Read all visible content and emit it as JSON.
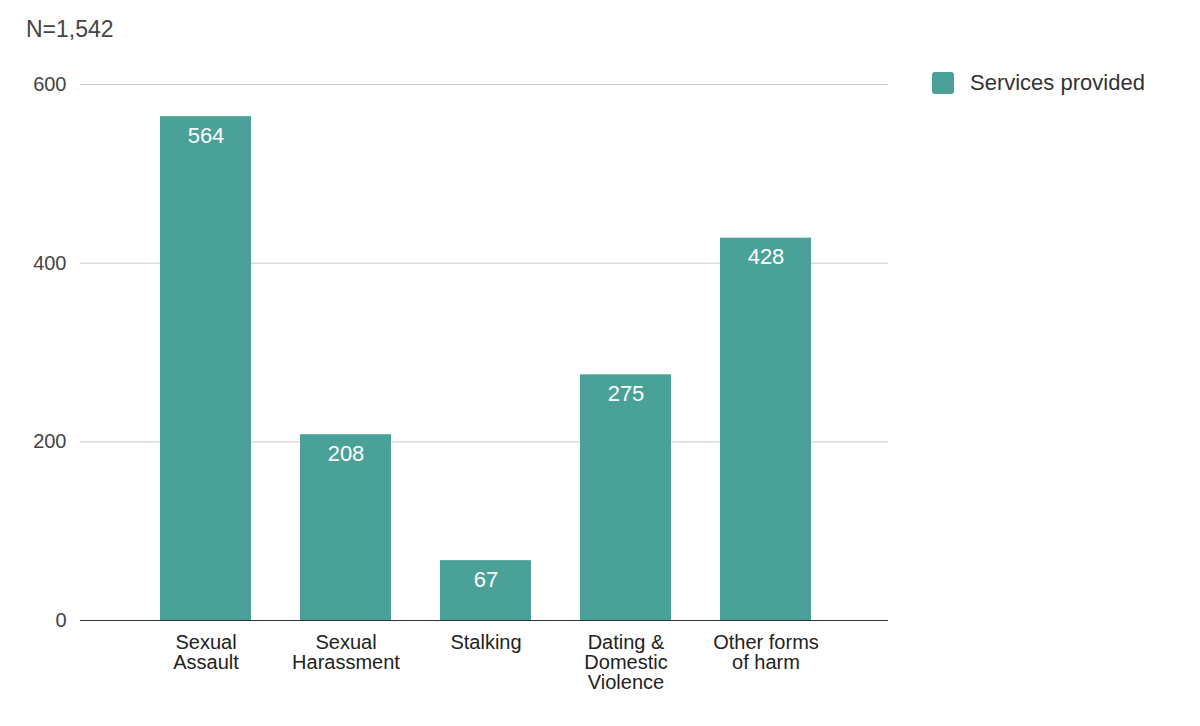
{
  "chart_data": {
    "type": "bar",
    "title": "N=1,542",
    "categories": [
      "Sexual\nAssault",
      "Sexual\nHarassment",
      "Stalking",
      "Dating &\nDomestic\nViolence",
      "Other forms\nof harm"
    ],
    "series": [
      {
        "name": "Services provided",
        "color": "#4aa198",
        "values": [
          564,
          208,
          67,
          275,
          428
        ]
      }
    ],
    "ylim": [
      0,
      600
    ],
    "yticks": [
      0,
      200,
      400,
      600
    ],
    "grid": true,
    "legend": "right",
    "data_labels": true
  }
}
